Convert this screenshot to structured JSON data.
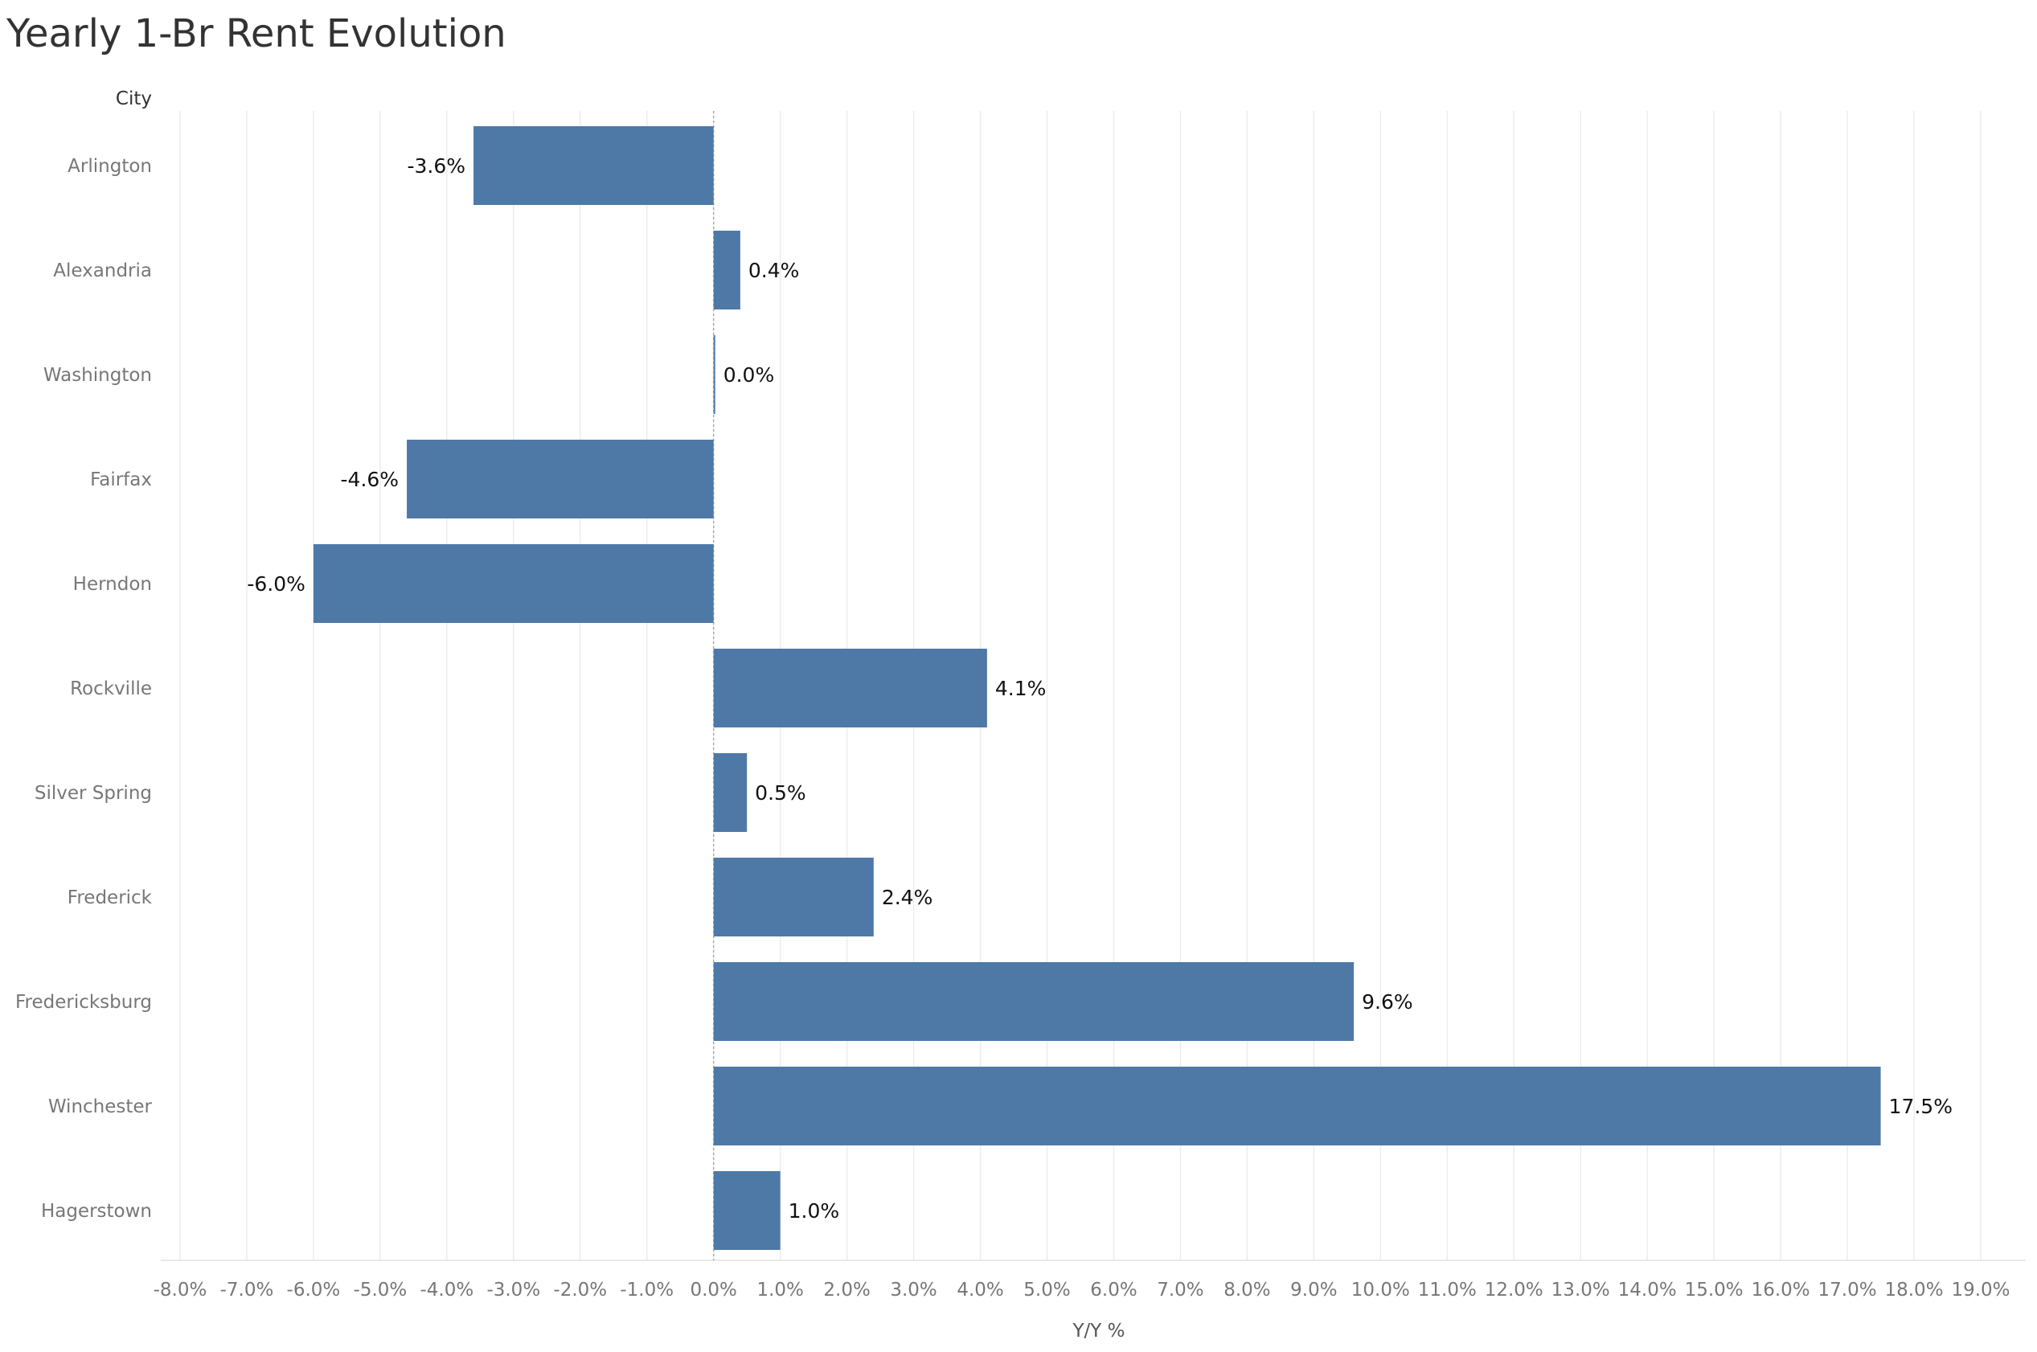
{
  "chart_data": {
    "type": "bar",
    "orientation": "horizontal",
    "title": "Yearly 1-Br Rent Evolution",
    "row_header": "City",
    "xlabel": "Y/Y %",
    "categories": [
      "Arlington",
      "Alexandria",
      "Washington",
      "Fairfax",
      "Herndon",
      "Rockville",
      "Silver Spring",
      "Frederick",
      "Fredericksburg",
      "Winchester",
      "Hagerstown"
    ],
    "values": [
      -3.6,
      0.4,
      0.0,
      -4.6,
      -6.0,
      4.1,
      0.5,
      2.4,
      9.6,
      17.5,
      1.0
    ],
    "value_labels": [
      "-3.6%",
      "0.4%",
      "0.0%",
      "-4.6%",
      "-6.0%",
      "4.1%",
      "0.5%",
      "2.4%",
      "9.6%",
      "17.5%",
      "1.0%"
    ],
    "xlim": [
      -8.0,
      19.0
    ],
    "xticks": [
      "-8.0%",
      "-7.0%",
      "-6.0%",
      "-5.0%",
      "-4.0%",
      "-3.0%",
      "-2.0%",
      "-1.0%",
      "0.0%",
      "1.0%",
      "2.0%",
      "3.0%",
      "4.0%",
      "5.0%",
      "6.0%",
      "7.0%",
      "8.0%",
      "9.0%",
      "10.0%",
      "11.0%",
      "12.0%",
      "13.0%",
      "14.0%",
      "15.0%",
      "16.0%",
      "17.0%",
      "18.0%",
      "19.0%"
    ],
    "grid": true,
    "colors": {
      "bar": "#4e79a7",
      "grid": "#ececec",
      "zero_line": "#aaaaaa"
    }
  }
}
